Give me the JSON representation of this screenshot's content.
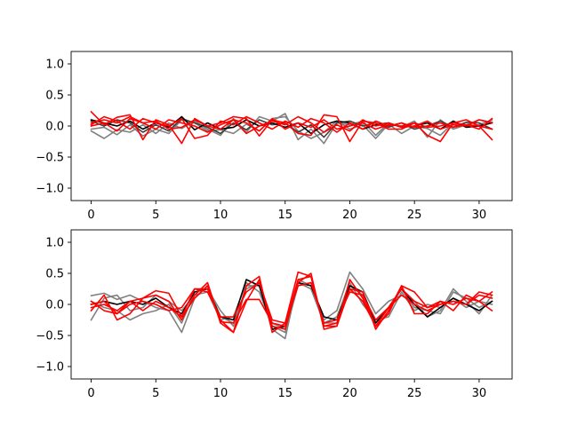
{
  "chart_data": [
    {
      "type": "line",
      "title": "",
      "xlabel": "",
      "ylabel": "",
      "xlim": [
        -1.55,
        32.55
      ],
      "ylim": [
        -1.2,
        1.2
      ],
      "grid": false,
      "legend": false,
      "xticks": [
        0,
        5,
        10,
        15,
        20,
        25,
        30
      ],
      "yticks": [
        -1.0,
        -0.5,
        0.0,
        0.5,
        1.0
      ],
      "xtick_labels": [
        "0",
        "5",
        "10",
        "15",
        "20",
        "25",
        "30"
      ],
      "ytick_labels": [
        "−1.0",
        "−0.5",
        "0.0",
        "0.5",
        "1.0"
      ],
      "x": [
        0,
        1,
        2,
        3,
        4,
        5,
        6,
        7,
        8,
        9,
        10,
        11,
        12,
        13,
        14,
        15,
        16,
        17,
        18,
        19,
        20,
        21,
        22,
        23,
        24,
        25,
        26,
        27,
        28,
        29,
        30,
        31
      ],
      "series": [
        {
          "color": "#808080",
          "values": [
            -0.08,
            -0.2,
            -0.06,
            -0.1,
            0.02,
            -0.12,
            0.05,
            -0.04,
            0.08,
            -0.05,
            -0.15,
            0.12,
            -0.1,
            0.15,
            0.08,
            0.2,
            -0.22,
            -0.05,
            -0.28,
            0.05,
            0.02,
            0.08,
            -0.15,
            0.05,
            -0.02,
            0.08,
            -0.18,
            0.1,
            -0.05,
            0.02,
            0.1,
            0.06
          ]
        },
        {
          "color": "#808080",
          "values": [
            -0.05,
            -0.02,
            -0.14,
            0.02,
            -0.16,
            -0.05,
            -0.12,
            0.1,
            0.05,
            -0.08,
            -0.06,
            -0.12,
            0.03,
            -0.08,
            0.12,
            0.15,
            -0.08,
            -0.2,
            -0.1,
            0.08,
            -0.05,
            0.02,
            -0.2,
            0.03,
            -0.12,
            0.0,
            -0.04,
            -0.15,
            0.05,
            0.0,
            0.02,
            0.1
          ]
        },
        {
          "color": "#404040",
          "values": [
            0.08,
            0.0,
            0.1,
            0.05,
            -0.1,
            0.02,
            -0.08,
            0.12,
            0.05,
            -0.02,
            -0.12,
            0.05,
            -0.06,
            0.1,
            0.02,
            0.05,
            -0.1,
            0.02,
            -0.18,
            0.05,
            0.08,
            0.0,
            0.05,
            -0.02,
            0.05,
            -0.05,
            0.0,
            0.08,
            -0.02,
            0.06,
            0.05,
            -0.05
          ]
        },
        {
          "color": "#000000",
          "values": [
            0.1,
            0.05,
            0.0,
            0.08,
            -0.05,
            0.05,
            -0.02,
            0.15,
            -0.06,
            0.05,
            -0.05,
            -0.02,
            0.1,
            0.0,
            0.05,
            -0.02,
            0.05,
            -0.12,
            0.02,
            0.08,
            0.05,
            -0.05,
            0.02,
            0.05,
            -0.02,
            0.0,
            0.05,
            -0.05,
            0.08,
            -0.02,
            0.0,
            0.05
          ]
        },
        {
          "color": "#ff0000",
          "values": [
            0.23,
            0.02,
            0.14,
            0.18,
            -0.22,
            0.1,
            0.02,
            -0.28,
            0.12,
            0.0,
            0.05,
            0.15,
            0.12,
            -0.16,
            0.1,
            0.05,
            -0.12,
            -0.15,
            0.18,
            0.15,
            -0.25,
            0.08,
            0.05,
            -0.05,
            -0.05,
            0.05,
            -0.15,
            -0.25,
            0.05,
            0.1,
            0.0,
            -0.22
          ]
        },
        {
          "color": "#ff0000",
          "values": [
            0.05,
            0.1,
            0.05,
            0.15,
            0.05,
            -0.05,
            0.1,
            0.05,
            0.0,
            -0.1,
            0.02,
            0.1,
            -0.12,
            0.0,
            0.08,
            0.02,
            0.15,
            0.05,
            -0.1,
            0.02,
            -0.08,
            0.1,
            0.0,
            0.05,
            -0.02,
            0.0,
            0.08,
            -0.05,
            0.02,
            0.0,
            0.1,
            0.05
          ]
        },
        {
          "color": "#ff0000",
          "values": [
            0.02,
            0.15,
            0.08,
            -0.05,
            0.12,
            0.05,
            0.0,
            0.12,
            -0.2,
            -0.15,
            0.08,
            0.02,
            0.15,
            0.05,
            -0.05,
            0.08,
            -0.02,
            0.12,
            0.05,
            -0.1,
            0.05,
            -0.05,
            0.08,
            0.0,
            0.05,
            -0.02,
            0.0,
            0.05,
            -0.02,
            0.02,
            -0.05,
            0.12
          ]
        },
        {
          "color": "#ff0000",
          "values": [
            0.0,
            0.05,
            -0.08,
            0.12,
            0.05,
            0.08,
            -0.05,
            -0.02,
            0.1,
            0.0,
            -0.05,
            0.1,
            0.05,
            -0.08,
            0.12,
            -0.05,
            0.05,
            -0.02,
            0.1,
            -0.05,
            0.0,
            0.05,
            -0.05,
            0.02,
            0.0,
            0.05,
            -0.02,
            0.0,
            0.05,
            0.02,
            0.0,
            -0.05
          ]
        }
      ]
    },
    {
      "type": "line",
      "title": "",
      "xlabel": "",
      "ylabel": "",
      "xlim": [
        -1.55,
        32.55
      ],
      "ylim": [
        -1.2,
        1.2
      ],
      "grid": false,
      "legend": false,
      "xticks": [
        0,
        5,
        10,
        15,
        20,
        25,
        30
      ],
      "yticks": [
        -1.0,
        -0.5,
        0.0,
        0.5,
        1.0
      ],
      "xtick_labels": [
        "0",
        "5",
        "10",
        "15",
        "20",
        "25",
        "30"
      ],
      "ytick_labels": [
        "−1.0",
        "−0.5",
        "0.0",
        "0.5",
        "1.0"
      ],
      "x": [
        0,
        1,
        2,
        3,
        4,
        5,
        6,
        7,
        8,
        9,
        10,
        11,
        12,
        13,
        14,
        15,
        16,
        17,
        18,
        19,
        20,
        21,
        22,
        23,
        24,
        25,
        26,
        27,
        28,
        29,
        30,
        31
      ],
      "series": [
        {
          "color": "#808080",
          "values": [
            0.14,
            0.18,
            0.08,
            0.15,
            0.05,
            -0.05,
            -0.1,
            -0.45,
            0.1,
            0.3,
            -0.2,
            -0.3,
            0.25,
            0.35,
            -0.4,
            -0.55,
            0.4,
            0.3,
            -0.25,
            -0.1,
            0.52,
            0.25,
            -0.15,
            0.05,
            0.15,
            0.05,
            -0.2,
            -0.1,
            0.25,
            0.05,
            -0.15,
            0.15
          ]
        },
        {
          "color": "#808080",
          "values": [
            -0.25,
            0.1,
            0.15,
            -0.1,
            -0.05,
            0.15,
            0.05,
            -0.1,
            0.15,
            0.2,
            -0.25,
            -0.2,
            0.35,
            0.2,
            -0.35,
            -0.45,
            0.3,
            0.35,
            -0.3,
            -0.3,
            0.3,
            0.15,
            -0.25,
            -0.05,
            0.25,
            -0.05,
            -0.1,
            -0.15,
            0.2,
            0.1,
            -0.05,
            0.05
          ]
        },
        {
          "color": "#808080",
          "values": [
            0.05,
            -0.05,
            -0.1,
            -0.25,
            -0.15,
            -0.1,
            0.0,
            -0.3,
            0.2,
            0.25,
            -0.1,
            -0.35,
            0.3,
            0.3,
            -0.3,
            -0.4,
            0.35,
            0.25,
            -0.3,
            -0.2,
            0.35,
            0.0,
            -0.25,
            -0.2,
            0.2,
            -0.1,
            0.0,
            -0.05,
            0.1,
            -0.05,
            0.05,
            0.0
          ]
        },
        {
          "color": "#000000",
          "values": [
            0.0,
            0.05,
            0.0,
            0.05,
            0.0,
            0.1,
            -0.05,
            -0.15,
            0.2,
            0.25,
            -0.2,
            -0.25,
            0.4,
            0.3,
            -0.4,
            -0.35,
            0.35,
            0.3,
            -0.2,
            -0.25,
            0.3,
            0.2,
            -0.3,
            -0.05,
            0.25,
            0.0,
            -0.2,
            -0.05,
            0.1,
            0.0,
            -0.1,
            0.05
          ]
        },
        {
          "color": "#ff0000",
          "values": [
            -0.1,
            0.15,
            -0.25,
            -0.15,
            0.1,
            0.15,
            0.05,
            -0.25,
            0.15,
            0.35,
            -0.3,
            -0.45,
            0.3,
            0.45,
            -0.45,
            -0.3,
            0.52,
            0.45,
            -0.35,
            -0.35,
            0.25,
            0.2,
            -0.4,
            -0.1,
            0.3,
            -0.15,
            -0.15,
            0.05,
            -0.1,
            0.15,
            0.05,
            -0.1
          ]
        },
        {
          "color": "#ff0000",
          "values": [
            0.05,
            -0.1,
            -0.15,
            0.05,
            0.1,
            0.22,
            0.18,
            -0.2,
            0.25,
            0.25,
            -0.25,
            -0.45,
            0.05,
            0.4,
            -0.35,
            -0.4,
            0.35,
            0.5,
            -0.4,
            -0.35,
            0.4,
            0.1,
            -0.35,
            -0.05,
            0.25,
            0.05,
            -0.05,
            0.0,
            0.05,
            0.0,
            0.2,
            0.15
          ]
        },
        {
          "color": "#ff0000",
          "values": [
            -0.05,
            0.0,
            -0.1,
            0.05,
            -0.1,
            0.05,
            -0.05,
            -0.2,
            0.1,
            0.3,
            -0.28,
            -0.3,
            0.08,
            0.08,
            -0.3,
            -0.35,
            0.4,
            0.45,
            -0.35,
            -0.3,
            0.25,
            0.05,
            -0.35,
            -0.15,
            0.3,
            0.2,
            -0.05,
            0.05,
            0.0,
            0.1,
            0.05,
            0.2
          ]
        },
        {
          "color": "#ff0000",
          "values": [
            0.0,
            0.05,
            -0.15,
            0.0,
            0.05,
            0.0,
            -0.1,
            -0.05,
            0.25,
            0.2,
            -0.2,
            -0.2,
            0.2,
            0.35,
            -0.25,
            -0.3,
            0.3,
            0.35,
            -0.3,
            -0.25,
            0.2,
            0.15,
            -0.25,
            -0.05,
            0.15,
            0.0,
            -0.1,
            0.0,
            0.05,
            0.0,
            0.15,
            0.1
          ]
        }
      ]
    }
  ]
}
